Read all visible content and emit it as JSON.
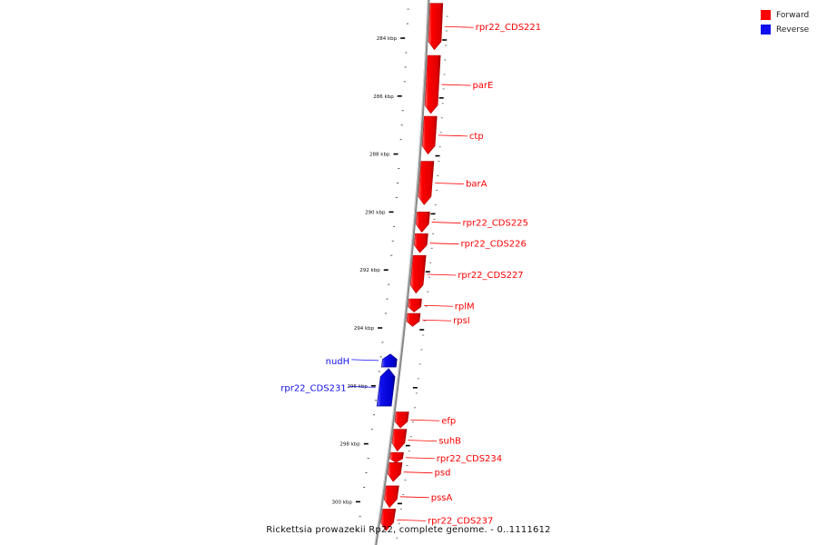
{
  "colors": {
    "forward": "#ff0000",
    "reverse": "#1010ee",
    "backbone": "#888888",
    "tick": "#000000"
  },
  "legend": [
    {
      "label": "Forward",
      "color": "#ff0000"
    },
    {
      "label": "Reverse",
      "color": "#1010ee"
    }
  ],
  "caption": "Rickettsia prowazekii Rp22, complete genome. - 0..1111612",
  "ticks": [
    {
      "kbp": 284,
      "label": "284 kbp"
    },
    {
      "kbp": 286,
      "label": "286 kbp"
    },
    {
      "kbp": 288,
      "label": "288 kbp"
    },
    {
      "kbp": 290,
      "label": "290 kbp"
    },
    {
      "kbp": 292,
      "label": "292 kbp"
    },
    {
      "kbp": 294,
      "label": "294 kbp"
    },
    {
      "kbp": 296,
      "label": "296 kbp"
    },
    {
      "kbp": 298,
      "label": "298 kbp"
    },
    {
      "kbp": 300,
      "label": "300 kbp"
    }
  ],
  "genes": [
    {
      "name": "rpr22_CDS221",
      "strand": "forward",
      "start_kbp": 282.8,
      "end_kbp": 284.4
    },
    {
      "name": "parE",
      "strand": "forward",
      "start_kbp": 284.6,
      "end_kbp": 286.6
    },
    {
      "name": "ctp",
      "strand": "forward",
      "start_kbp": 286.7,
      "end_kbp": 288.0
    },
    {
      "name": "barA",
      "strand": "forward",
      "start_kbp": 288.25,
      "end_kbp": 289.75
    },
    {
      "name": "rpr22_CDS225",
      "strand": "forward",
      "start_kbp": 290.0,
      "end_kbp": 290.7
    },
    {
      "name": "rpr22_CDS226",
      "strand": "forward",
      "start_kbp": 290.75,
      "end_kbp": 291.4
    },
    {
      "name": "rpr22_CDS227",
      "strand": "forward",
      "start_kbp": 291.5,
      "end_kbp": 292.8
    },
    {
      "name": "rplM",
      "strand": "forward",
      "start_kbp": 293.0,
      "end_kbp": 293.45
    },
    {
      "name": "rpsI",
      "strand": "forward",
      "start_kbp": 293.5,
      "end_kbp": 293.95
    },
    {
      "name": "nudH",
      "strand": "reverse",
      "start_kbp": 294.9,
      "end_kbp": 295.35
    },
    {
      "name": "rpr22_CDS231",
      "strand": "reverse",
      "start_kbp": 295.4,
      "end_kbp": 296.7
    },
    {
      "name": "efp",
      "strand": "forward",
      "start_kbp": 296.9,
      "end_kbp": 297.45
    },
    {
      "name": "suhB",
      "strand": "forward",
      "start_kbp": 297.5,
      "end_kbp": 298.25
    },
    {
      "name": "rpr22_CDS234",
      "strand": "forward",
      "start_kbp": 298.3,
      "end_kbp": 298.65
    },
    {
      "name": "psd",
      "strand": "forward",
      "start_kbp": 298.65,
      "end_kbp": 299.3
    },
    {
      "name": "pssA",
      "strand": "forward",
      "start_kbp": 299.45,
      "end_kbp": 300.2
    },
    {
      "name": "rpr22_CDS237",
      "strand": "forward",
      "start_kbp": 300.25,
      "end_kbp": 301.0
    }
  ]
}
